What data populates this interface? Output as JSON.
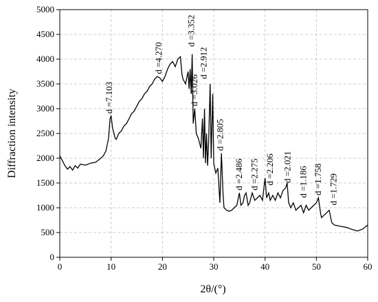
{
  "chart_data": {
    "type": "line",
    "xlabel": "2θ/(°)",
    "ylabel": "Diffraction intensity",
    "xlim": [
      0,
      60
    ],
    "xticks": [
      0,
      10,
      20,
      30,
      40,
      50,
      60
    ],
    "ylim": [
      0,
      5000
    ],
    "yticks": [
      0,
      500,
      1000,
      1500,
      2000,
      2500,
      3000,
      3500,
      4000,
      4500,
      5000
    ],
    "grid": true,
    "series": [
      {
        "color": "#000000",
        "x": [
          0,
          0.5,
          1,
          1.5,
          2,
          2.5,
          3,
          3.5,
          4,
          5,
          6,
          7,
          8,
          8.5,
          9,
          9.5,
          9.8,
          10,
          10.3,
          10.8,
          11,
          11.5,
          12,
          12.5,
          13,
          13.5,
          14,
          14.5,
          15,
          15.5,
          16,
          16.5,
          17,
          17.5,
          18,
          18.5,
          19,
          19.5,
          20,
          20.5,
          21,
          21.5,
          22,
          22.5,
          23,
          23.5,
          23.8,
          24,
          24.5,
          25,
          25.2,
          25.4,
          25.6,
          25.8,
          26,
          26.3,
          26.6,
          27,
          27.5,
          27.8,
          28,
          28.2,
          28.4,
          28.6,
          28.8,
          29,
          29.3,
          29.5,
          29.8,
          30,
          30.4,
          30.8,
          31.2,
          31.5,
          31.8,
          32,
          32.5,
          33,
          33.5,
          34,
          34.5,
          35,
          35.3,
          35.7,
          36,
          36.3,
          36.7,
          37,
          37.5,
          38,
          38.5,
          39,
          39.5,
          40,
          40.3,
          40.7,
          41,
          41.5,
          42,
          42.5,
          43,
          43.5,
          44,
          44.3,
          44.6,
          45,
          45.5,
          46,
          46.5,
          47,
          47.5,
          48,
          48.5,
          49,
          49.5,
          50,
          50.4,
          50.8,
          51,
          51.5,
          52,
          52.5,
          53,
          53.5,
          54,
          55,
          56,
          57,
          58,
          59,
          60
        ],
        "values": [
          2050,
          1950,
          1850,
          1780,
          1830,
          1760,
          1850,
          1800,
          1880,
          1860,
          1900,
          1920,
          2000,
          2050,
          2150,
          2400,
          2800,
          2850,
          2600,
          2400,
          2380,
          2500,
          2550,
          2650,
          2700,
          2800,
          2900,
          2950,
          3050,
          3150,
          3200,
          3300,
          3350,
          3450,
          3500,
          3600,
          3650,
          3620,
          3550,
          3650,
          3800,
          3900,
          3950,
          3850,
          4000,
          4050,
          3700,
          3600,
          3500,
          3750,
          3400,
          3800,
          3300,
          4100,
          2700,
          3000,
          2500,
          2400,
          2200,
          2800,
          2000,
          3000,
          1900,
          2500,
          1850,
          2300,
          3500,
          2000,
          3300,
          1900,
          1700,
          1800,
          1100,
          2100,
          1300,
          1000,
          950,
          930,
          950,
          1000,
          1050,
          1300,
          1050,
          1100,
          1250,
          1300,
          1050,
          1100,
          1300,
          1150,
          1200,
          1250,
          1150,
          1600,
          1200,
          1300,
          1150,
          1250,
          1150,
          1300,
          1200,
          1350,
          1400,
          1500,
          1100,
          1000,
          1100,
          950,
          1000,
          1050,
          900,
          1050,
          950,
          1000,
          1050,
          1100,
          1200,
          900,
          800,
          850,
          900,
          950,
          700,
          650,
          640,
          620,
          600,
          560,
          530,
          570,
          650
        ]
      }
    ],
    "annotations": [
      {
        "text": "d =7.103",
        "x": 10.2,
        "y": 2900
      },
      {
        "text": "d =4.270",
        "x": 19.8,
        "y": 3700
      },
      {
        "text": "d =3.352",
        "x": 26.2,
        "y": 4250
      },
      {
        "text": "d =3.026",
        "x": 26.8,
        "y": 3050
      },
      {
        "text": "d =2.912",
        "x": 28.6,
        "y": 3600
      },
      {
        "text": "d =2.805",
        "x": 31.8,
        "y": 2150
      },
      {
        "text": "d =2.486",
        "x": 35.5,
        "y": 1350
      },
      {
        "text": "d =2.275",
        "x": 38.5,
        "y": 1350
      },
      {
        "text": "d =2.206",
        "x": 41.5,
        "y": 1450
      },
      {
        "text": "d =2.021",
        "x": 44.9,
        "y": 1500
      },
      {
        "text": "d =1.186",
        "x": 48.0,
        "y": 1200
      },
      {
        "text": "d =1.758",
        "x": 50.9,
        "y": 1250
      },
      {
        "text": "d =1.729",
        "x": 53.9,
        "y": 1050
      }
    ]
  }
}
